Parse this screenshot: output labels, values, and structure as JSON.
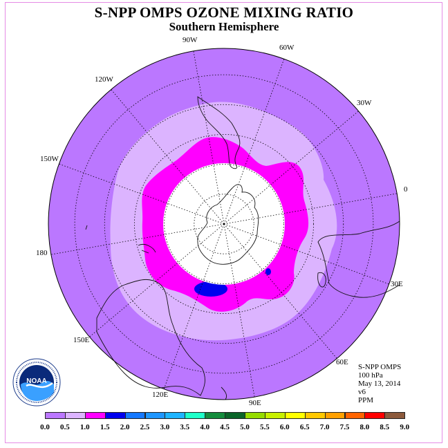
{
  "title": "S-NPP OMPS OZONE MIXING RATIO",
  "subtitle": "Southern Hemisphere",
  "longitude_labels": [
    "90W",
    "60W",
    "30W",
    "0",
    "30E",
    "60E",
    "90E",
    "120E",
    "150E",
    "180",
    "150W",
    "120W"
  ],
  "info": {
    "instrument": "S-NPP OMPS",
    "level": "100 hPa",
    "date": "May 13, 2014",
    "version": "v6",
    "units": "PPM"
  },
  "logo": {
    "name": "noaa-logo",
    "text": "NOAA"
  },
  "colorbar": {
    "ticks": [
      "0.0",
      "0.5",
      "1.0",
      "1.5",
      "2.0",
      "2.5",
      "3.0",
      "3.5",
      "4.0",
      "4.5",
      "5.0",
      "5.5",
      "6.0",
      "6.5",
      "7.0",
      "7.5",
      "8.0",
      "8.5",
      "9.0"
    ],
    "colors": [
      "#bb77ff",
      "#dcb4ff",
      "#ff00ff",
      "#0000ee",
      "#1478ff",
      "#1e96ff",
      "#1eb4ff",
      "#1effc8",
      "#148c3c",
      "#0a6428",
      "#96dc00",
      "#c8f000",
      "#ffff00",
      "#ffc800",
      "#ffa000",
      "#ff6400",
      "#ff0000",
      "#8c5a3c"
    ]
  },
  "map": {
    "projection": "south-polar-stereographic",
    "levels": [
      {
        "range": "0.0-0.5",
        "color": "#bb77ff"
      },
      {
        "range": "0.5-1.0",
        "color": "#dcb4ff"
      },
      {
        "range": "1.0-1.5",
        "color": "#ff00ff"
      },
      {
        "range": "1.5-2.0",
        "color": "#0000ee"
      }
    ],
    "missing_color": "#ffffff",
    "grid": true
  }
}
